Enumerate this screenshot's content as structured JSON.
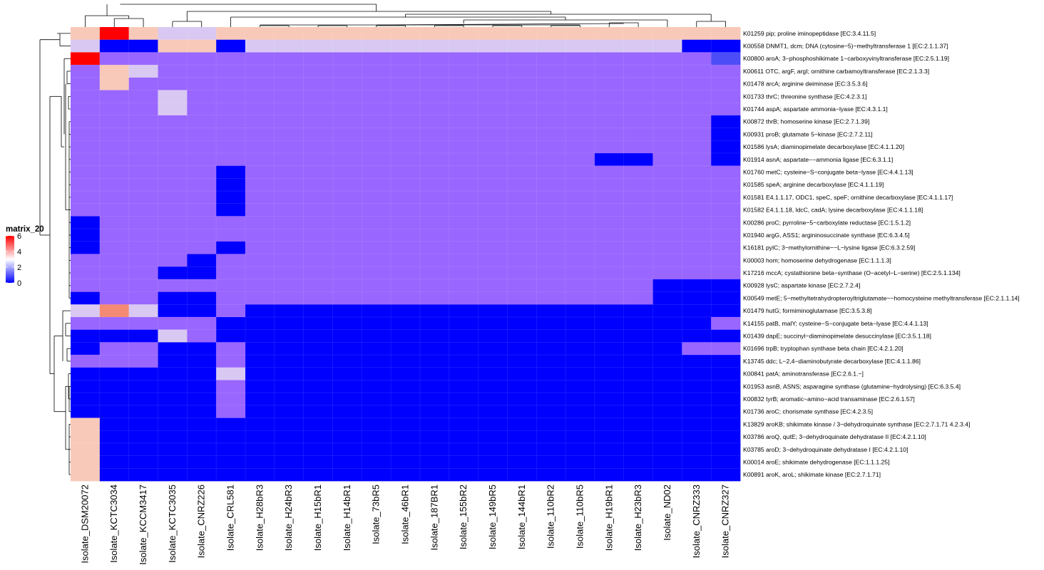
{
  "chart_data": {
    "type": "heatmap",
    "title": "",
    "legend": {
      "title": "matrix_20",
      "ticks": [
        0,
        2,
        4,
        6
      ],
      "colors": {
        "low": "#0000ff",
        "mid": "#ffffff",
        "high": "#ff0000"
      },
      "range": [
        0,
        6
      ],
      "placement": "left"
    },
    "columns": [
      "Isolate_DSM20072",
      "Isolate_KCTC3034",
      "Isolate_KCCM3417",
      "Isolate_KCTC3035",
      "Isolate_CNRZ226",
      "Isolate_CRL581",
      "Isolate_H28bR3",
      "Isolate_H24bR3",
      "Isolate_H15bR1",
      "Isolate_H14bR1",
      "Isolate_73bR5",
      "Isolate_46bR1",
      "Isolate_187BR1",
      "Isolate_155bR2",
      "Isolate_149bR5",
      "Isolate_144bR1",
      "Isolate_110bR2",
      "Isolate_110bR5",
      "Isolate_H19bR1",
      "Isolate_H23bR3",
      "Isolate_ND02",
      "Isolate_CNRZ333",
      "Isolate_CNRZ327"
    ],
    "rows": [
      "K01259  pip; proline iminopeptidase [EC:3.4.11.5]",
      "K00558  DNMT1, dcm; DNA (cytosine−5)−methyltransferase 1 [EC:2.1.1.37]",
      "K00800  aroA; 3−phosphoshikimate 1−carboxyvinyltransferase [EC:2.5.1.19]",
      "K00611  OTC, argF, argI; ornithine carbamoyltransferase [EC:2.1.3.3]",
      "K01478  arcA; arginine deiminase [EC:3.5.3.6]",
      "K01733  thrC; threonine synthase [EC:4.2.3.1]",
      "K01744  aspA; aspartate ammonia−lyase [EC:4.3.1.1]",
      "K00872  thrB; homoserine kinase [EC:2.7.1.39]",
      "K00931  proB; glutamate 5−kinase [EC:2.7.2.11]",
      "K01586  lysA; diaminopimelate decarboxylase [EC:4.1.1.20]",
      "K01914  asnA; aspartate−−ammonia ligase [EC:6.3.1.1]",
      "K01760  metC; cysteine−S−conjugate beta−lyase [EC:4.4.1.13]",
      "K01585  speA; arginine decarboxylase [EC:4.1.1.19]",
      "K01581  E4.1.1.17, ODC1, speC, speF; ornithine decarboxylase [EC:4.1.1.17]",
      "K01582  E4.1.1.18, ldcC, cadA; lysine decarboxylase [EC:4.1.1.18]",
      "K00286  proC; pyrroline−5−carboxylate reductase [EC:1.5.1.2]",
      "K01940  argG, ASS1; argininosuccinate synthase [EC:6.3.4.5]",
      "K16181  pylC; 3−methylornithine−−L−lysine ligase [EC:6.3.2.59]",
      "K00003  hom; homoserine dehydrogenase [EC:1.1.1.3]",
      "K17216  mccA; cystathionine beta−synthase (O−acetyl−L−serine) [EC:2.5.1.134]",
      "K00928  lysC; aspartate kinase [EC:2.7.2.4]",
      "K00549  metE; 5−methyltetrahydropteroyltriglutamate−−homocysteine methyltransferase [EC:2.1.1.14]",
      "K01479  hutG; formiminoglutamase [EC:3.5.3.8]",
      "K14155  patB, malY; cysteine−S−conjugate beta−lyase [EC:4.4.1.13]",
      "K01439  dapE; succinyl−diaminopimelate desuccinylase [EC:3.5.1.18]",
      "K01696  trpB; tryptophan synthase beta chain [EC:4.2.1.20]",
      "K13745  ddc; L−2,4−diaminobutyrate decarboxylase [EC:4.1.1.86]",
      "K00841  patA; aminotransferase [EC:2.6.1.−]",
      "K01953  asnB, ASNS; asparagine synthase (glutamine−hydrolysing) [EC:6.3.5.4]",
      "K00832  tyrB; aromatic−amino−acid transaminase [EC:2.6.1.57]",
      "K01736  aroC; chorismate synthase [EC:4.2.3.5]",
      "K13829  aroKB; shikimate kinase / 3−dehydroquinate synthase [EC:2.7.1.71 4.2.3.4]",
      "K03786  aroQ, qutE; 3−dehydroquinate dehydratase II [EC:4.2.1.10]",
      "K03785  aroD; 3−dehydroquinate dehydratase I [EC:4.2.1.10]",
      "K00014  aroE; shikimate dehydrogenase [EC:1.1.1.25]",
      "K00891  aroK, aroL; shikimate kinase [EC:2.7.1.71]"
    ],
    "values": [
      [
        4,
        6,
        4,
        3,
        3,
        4,
        4,
        4,
        4,
        4,
        4,
        4,
        4,
        4,
        4,
        4,
        4,
        4,
        4,
        4,
        4,
        4,
        4
      ],
      [
        3,
        0,
        0,
        4,
        4,
        0,
        3,
        3,
        3,
        3,
        3,
        3,
        3,
        3,
        3,
        3,
        3,
        3,
        3,
        3,
        3,
        0,
        0
      ],
      [
        6,
        2,
        2,
        2,
        2,
        2,
        2,
        2,
        2,
        2,
        2,
        2,
        2,
        2,
        2,
        2,
        2,
        2,
        2,
        2,
        2,
        2,
        1
      ],
      [
        2,
        4,
        3,
        2,
        2,
        2,
        2,
        2,
        2,
        2,
        2,
        2,
        2,
        2,
        2,
        2,
        2,
        2,
        2,
        2,
        2,
        2,
        2
      ],
      [
        2,
        4,
        2,
        2,
        2,
        2,
        2,
        2,
        2,
        2,
        2,
        2,
        2,
        2,
        2,
        2,
        2,
        2,
        2,
        2,
        2,
        2,
        2
      ],
      [
        2,
        2,
        2,
        3,
        2,
        2,
        2,
        2,
        2,
        2,
        2,
        2,
        2,
        2,
        2,
        2,
        2,
        2,
        2,
        2,
        2,
        2,
        2
      ],
      [
        2,
        2,
        2,
        3,
        2,
        2,
        2,
        2,
        2,
        2,
        2,
        2,
        2,
        2,
        2,
        2,
        2,
        2,
        2,
        2,
        2,
        2,
        2
      ],
      [
        2,
        2,
        2,
        2,
        2,
        2,
        2,
        2,
        2,
        2,
        2,
        2,
        2,
        2,
        2,
        2,
        2,
        2,
        2,
        2,
        2,
        2,
        0
      ],
      [
        2,
        2,
        2,
        2,
        2,
        2,
        2,
        2,
        2,
        2,
        2,
        2,
        2,
        2,
        2,
        2,
        2,
        2,
        2,
        2,
        2,
        2,
        0
      ],
      [
        2,
        2,
        2,
        2,
        2,
        2,
        2,
        2,
        2,
        2,
        2,
        2,
        2,
        2,
        2,
        2,
        2,
        2,
        2,
        2,
        2,
        2,
        0
      ],
      [
        2,
        2,
        2,
        2,
        2,
        2,
        2,
        2,
        2,
        2,
        2,
        2,
        2,
        2,
        2,
        2,
        2,
        2,
        0,
        0,
        2,
        2,
        0
      ],
      [
        2,
        2,
        2,
        2,
        2,
        0,
        2,
        2,
        2,
        2,
        2,
        2,
        2,
        2,
        2,
        2,
        2,
        2,
        2,
        2,
        2,
        2,
        2
      ],
      [
        2,
        2,
        2,
        2,
        2,
        0,
        2,
        2,
        2,
        2,
        2,
        2,
        2,
        2,
        2,
        2,
        2,
        2,
        2,
        2,
        2,
        2,
        2
      ],
      [
        2,
        2,
        2,
        2,
        2,
        0,
        2,
        2,
        2,
        2,
        2,
        2,
        2,
        2,
        2,
        2,
        2,
        2,
        2,
        2,
        2,
        2,
        2
      ],
      [
        2,
        2,
        2,
        2,
        2,
        0,
        2,
        2,
        2,
        2,
        2,
        2,
        2,
        2,
        2,
        2,
        2,
        2,
        2,
        2,
        2,
        2,
        2
      ],
      [
        0,
        2,
        2,
        2,
        2,
        2,
        2,
        2,
        2,
        2,
        2,
        2,
        2,
        2,
        2,
        2,
        2,
        2,
        2,
        2,
        2,
        2,
        2
      ],
      [
        0,
        2,
        2,
        2,
        2,
        2,
        2,
        2,
        2,
        2,
        2,
        2,
        2,
        2,
        2,
        2,
        2,
        2,
        2,
        2,
        2,
        2,
        2
      ],
      [
        0,
        2,
        2,
        2,
        2,
        0,
        2,
        2,
        2,
        2,
        2,
        2,
        2,
        2,
        2,
        2,
        2,
        2,
        2,
        2,
        2,
        2,
        2
      ],
      [
        2,
        2,
        2,
        2,
        0,
        2,
        2,
        2,
        2,
        2,
        2,
        2,
        2,
        2,
        2,
        2,
        2,
        2,
        2,
        2,
        2,
        2,
        2
      ],
      [
        2,
        2,
        2,
        0,
        0,
        2,
        2,
        2,
        2,
        2,
        2,
        2,
        2,
        2,
        2,
        2,
        2,
        2,
        2,
        2,
        2,
        2,
        2
      ],
      [
        2,
        2,
        2,
        2,
        2,
        2,
        2,
        2,
        2,
        2,
        2,
        2,
        2,
        2,
        2,
        2,
        2,
        2,
        2,
        2,
        0,
        0,
        0
      ],
      [
        0,
        2,
        2,
        0,
        0,
        2,
        2,
        2,
        2,
        2,
        2,
        2,
        2,
        2,
        2,
        2,
        2,
        2,
        2,
        2,
        0,
        0,
        0
      ],
      [
        3,
        5,
        3,
        0,
        0,
        2,
        0,
        0,
        0,
        0,
        0,
        0,
        0,
        0,
        0,
        0,
        0,
        0,
        0,
        0,
        0,
        0,
        0
      ],
      [
        2,
        2,
        2,
        2,
        2,
        0,
        0,
        0,
        0,
        0,
        0,
        0,
        0,
        0,
        0,
        0,
        0,
        0,
        0,
        0,
        0,
        0,
        2
      ],
      [
        0,
        0,
        0,
        3,
        2,
        0,
        0,
        0,
        0,
        0,
        0,
        0,
        0,
        0,
        0,
        0,
        0,
        0,
        0,
        0,
        0,
        0,
        0
      ],
      [
        0,
        2,
        2,
        0,
        0,
        2,
        0,
        0,
        0,
        0,
        0,
        0,
        0,
        0,
        0,
        0,
        0,
        0,
        0,
        0,
        0,
        2,
        2
      ],
      [
        2,
        2,
        2,
        0,
        0,
        2,
        0,
        0,
        0,
        0,
        0,
        0,
        0,
        0,
        0,
        0,
        0,
        0,
        0,
        0,
        0,
        0,
        0
      ],
      [
        0,
        0,
        0,
        0,
        0,
        3,
        0,
        0,
        0,
        0,
        0,
        0,
        0,
        0,
        0,
        0,
        0,
        0,
        0,
        0,
        0,
        0,
        0
      ],
      [
        0,
        0,
        0,
        0,
        0,
        2,
        0,
        0,
        0,
        0,
        0,
        0,
        0,
        0,
        0,
        0,
        0,
        0,
        0,
        0,
        0,
        0,
        0
      ],
      [
        0,
        0,
        0,
        0,
        0,
        2,
        0,
        0,
        0,
        0,
        0,
        0,
        0,
        0,
        0,
        0,
        0,
        0,
        0,
        0,
        0,
        0,
        0
      ],
      [
        0,
        0,
        0,
        0,
        0,
        2,
        0,
        0,
        0,
        0,
        0,
        0,
        0,
        0,
        0,
        0,
        0,
        0,
        0,
        0,
        0,
        0,
        0
      ],
      [
        4,
        0,
        0,
        0,
        0,
        0,
        0,
        0,
        0,
        0,
        0,
        0,
        0,
        0,
        0,
        0,
        0,
        0,
        0,
        0,
        0,
        0,
        0
      ],
      [
        4,
        0,
        0,
        0,
        0,
        0,
        0,
        0,
        0,
        0,
        0,
        0,
        0,
        0,
        0,
        0,
        0,
        0,
        0,
        0,
        0,
        0,
        0
      ],
      [
        4,
        0,
        0,
        0,
        0,
        0,
        0,
        0,
        0,
        0,
        0,
        0,
        0,
        0,
        0,
        0,
        0,
        0,
        0,
        0,
        0,
        0,
        0
      ],
      [
        4,
        0,
        0,
        0,
        0,
        0,
        0,
        0,
        0,
        0,
        0,
        0,
        0,
        0,
        0,
        0,
        0,
        0,
        0,
        0,
        0,
        0,
        0
      ],
      [
        4,
        0,
        0,
        0,
        0,
        0,
        0,
        0,
        0,
        0,
        0,
        0,
        0,
        0,
        0,
        0,
        0,
        0,
        0,
        0,
        0,
        0,
        0
      ]
    ],
    "dendrograms": {
      "rows": true,
      "columns": true
    }
  }
}
